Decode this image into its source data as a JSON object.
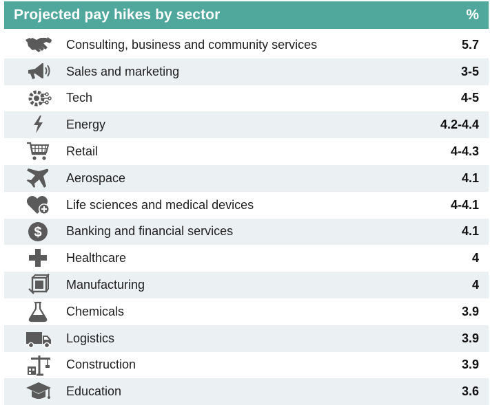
{
  "header": {
    "title": "Projected pay hikes by sector",
    "unit": "%"
  },
  "icon_color": "#5a5a5a",
  "header_color": "#4fa89b",
  "stripe_color": "#ebf1f3",
  "chart_data": {
    "type": "table",
    "title": "Projected pay hikes by sector",
    "columns": [
      "",
      "%"
    ],
    "rows": [
      {
        "sector": "Consulting, business and community services",
        "value": "5.7",
        "icon": "handshake-icon"
      },
      {
        "sector": "Sales and marketing",
        "value": "3-5",
        "icon": "megaphone-icon"
      },
      {
        "sector": "Tech",
        "value": "4-5",
        "icon": "circuit-gear-icon"
      },
      {
        "sector": "Energy",
        "value": "4.2-4.4",
        "icon": "lightning-icon"
      },
      {
        "sector": "Retail",
        "value": "4-4.3",
        "icon": "shopping-cart-icon"
      },
      {
        "sector": "Aerospace",
        "value": "4.1",
        "icon": "airplane-icon"
      },
      {
        "sector": "Life sciences and medical devices",
        "value": "4-4.1",
        "icon": "heart-plus-icon"
      },
      {
        "sector": "Banking and financial services",
        "value": "4.1",
        "icon": "dollar-coin-icon"
      },
      {
        "sector": "Healthcare",
        "value": "4",
        "icon": "medical-cross-icon"
      },
      {
        "sector": "Manufacturing",
        "value": "4",
        "icon": "factory-box-icon"
      },
      {
        "sector": "Chemicals",
        "value": "3.9",
        "icon": "flask-icon"
      },
      {
        "sector": "Logistics",
        "value": "3.9",
        "icon": "truck-icon"
      },
      {
        "sector": "Construction",
        "value": "3.9",
        "icon": "crane-icon"
      },
      {
        "sector": "Education",
        "value": "3.6",
        "icon": "graduation-cap-icon"
      }
    ]
  }
}
